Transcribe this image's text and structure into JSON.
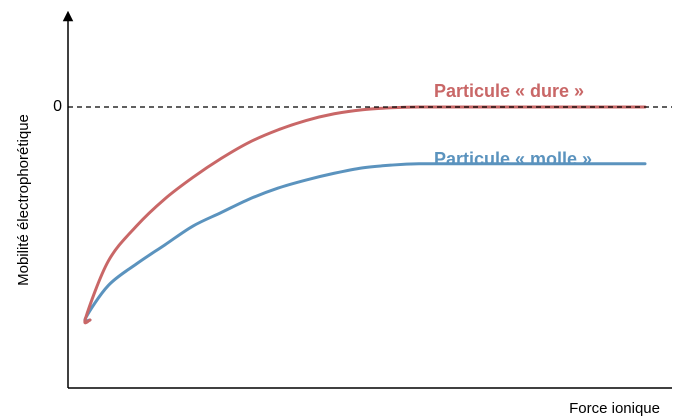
{
  "chart_data": {
    "type": "line",
    "title": "",
    "xlabel": "Force ionique",
    "ylabel": "Mobilité électrophorétique",
    "y_ticks": [
      {
        "value": 0,
        "label": "0"
      }
    ],
    "xlim": [
      0,
      10
    ],
    "ylim": [
      -1,
      0.3
    ],
    "grid": false,
    "reference_line": {
      "y": 0,
      "style": "dashed"
    },
    "series": [
      {
        "name": "Particule « dure »",
        "color": "#c96767",
        "x": [
          0.1,
          0.5,
          1,
          1.5,
          2,
          2.5,
          3,
          3.5,
          4,
          4.5,
          5,
          5.5,
          6,
          7,
          8,
          9,
          10
        ],
        "y": [
          -0.78,
          -0.57,
          -0.44,
          -0.34,
          -0.26,
          -0.19,
          -0.13,
          -0.085,
          -0.05,
          -0.025,
          -0.01,
          -0.003,
          0,
          0,
          0,
          0,
          0
        ]
      },
      {
        "name": "Particule « molle »",
        "color": "#5b93be",
        "x": [
          0.1,
          0.5,
          1,
          1.5,
          2,
          2.5,
          3,
          3.5,
          4,
          4.5,
          5,
          5.5,
          6,
          7,
          8,
          9,
          10
        ],
        "y": [
          -0.78,
          -0.66,
          -0.58,
          -0.51,
          -0.44,
          -0.39,
          -0.34,
          -0.3,
          -0.27,
          -0.245,
          -0.225,
          -0.215,
          -0.21,
          -0.21,
          -0.21,
          -0.21,
          -0.21
        ]
      }
    ]
  }
}
